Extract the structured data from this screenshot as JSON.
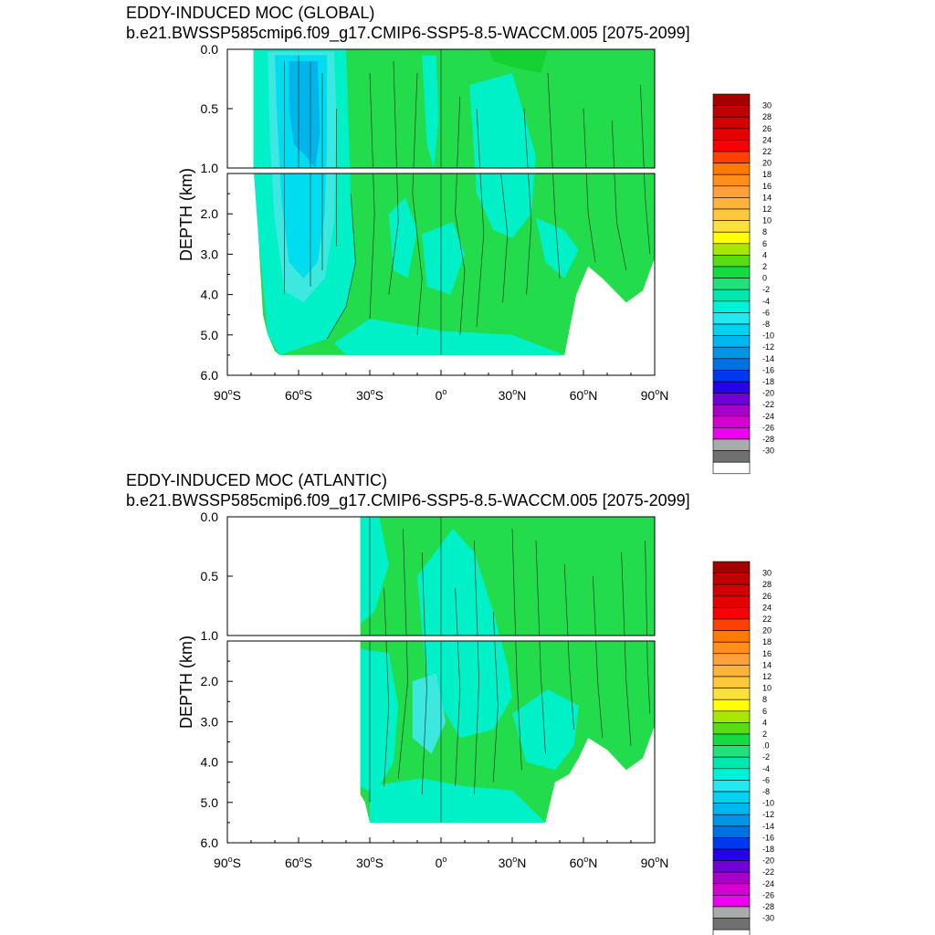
{
  "chart_data": [
    {
      "type": "heatmap",
      "title": "EDDY-INDUCED MOC (GLOBAL)",
      "subtitle": "b.e21.BWSSP585cmip6.f09_g17.CMIP6-SSP5-8.5-WACCM.005 [2075-2099]",
      "xlabel": "",
      "ylabel": "DEPTH (km)",
      "xlim": [
        -90,
        90
      ],
      "ylim": [
        6.0,
        0.0
      ],
      "x_ticks": [
        {
          "value": -90,
          "num": "90",
          "hemi": "S"
        },
        {
          "value": -60,
          "num": "60",
          "hemi": "S"
        },
        {
          "value": -30,
          "num": "30",
          "hemi": "S"
        },
        {
          "value": 0,
          "num": "0",
          "hemi": ""
        },
        {
          "value": 30,
          "num": "30",
          "hemi": "N"
        },
        {
          "value": 60,
          "num": "60",
          "hemi": "N"
        },
        {
          "value": 90,
          "num": "90",
          "hemi": "N"
        }
      ],
      "y_ticks_upper": [
        "0.0",
        "0.5",
        "1.0"
      ],
      "y_ticks_lower": [
        "2.0",
        "3.0",
        "4.0",
        "5.0",
        "6.0"
      ],
      "depth_break_km": 1.0,
      "dominant_range": [
        -12,
        2
      ],
      "colorbar_labels": [
        "30",
        "28",
        "26",
        "24",
        "22",
        "20",
        "18",
        "16",
        "14",
        "12",
        "10",
        "8",
        "6",
        "4",
        "2",
        "0",
        "-2",
        "-4",
        "-6",
        "-8",
        "-10",
        "-12",
        "-14",
        "-16",
        "-18",
        "-20",
        "-22",
        "-24",
        "-26",
        "-28",
        "-30"
      ],
      "fields": {
        "green_positive": 2,
        "teal_negative": -2,
        "southern_ocean_cell_min": -12,
        "southern_ocean_lat": -52
      }
    },
    {
      "type": "heatmap",
      "title": "EDDY-INDUCED MOC (ATLANTIC)",
      "subtitle": "b.e21.BWSSP585cmip6.f09_g17.CMIP6-SSP5-8.5-WACCM.005 [2075-2099]",
      "xlabel": "",
      "ylabel": "DEPTH (km)",
      "xlim": [
        -90,
        90
      ],
      "ylim": [
        6.0,
        0.0
      ],
      "x_ticks": [
        {
          "value": -90,
          "num": "90",
          "hemi": "S"
        },
        {
          "value": -60,
          "num": "60",
          "hemi": "S"
        },
        {
          "value": -30,
          "num": "30",
          "hemi": "S"
        },
        {
          "value": 0,
          "num": "0",
          "hemi": ""
        },
        {
          "value": 30,
          "num": "30",
          "hemi": "N"
        },
        {
          "value": 60,
          "num": "60",
          "hemi": "N"
        },
        {
          "value": 90,
          "num": "90",
          "hemi": "N"
        }
      ],
      "y_ticks_upper": [
        "0.0",
        "0.5",
        "1.0"
      ],
      "y_ticks_lower": [
        "2.0",
        "3.0",
        "4.0",
        "5.0",
        "6.0"
      ],
      "depth_break_km": 1.0,
      "dominant_range": [
        -2,
        2
      ],
      "colorbar_labels": [
        "30",
        "28",
        "26",
        "24",
        "22",
        "20",
        "18",
        "16",
        "14",
        "12",
        "10",
        "8",
        "6",
        "4",
        "2",
        ".0",
        "-2",
        "-4",
        "-6",
        "-8",
        "-10",
        "-12",
        "-14",
        "-16",
        "-18",
        "-20",
        "-22",
        "-24",
        "-26",
        "-28",
        "-30"
      ],
      "fields": {
        "green_positive": 2,
        "teal_negative": -2,
        "southern_boundary_lat": -34
      }
    }
  ],
  "colorbar_colors": [
    "#a50000",
    "#be0000",
    "#d20000",
    "#e60000",
    "#fa0000",
    "#ff4000",
    "#ff7a00",
    "#ff8f1a",
    "#ffa03a",
    "#ffb23e",
    "#ffc83c",
    "#ffe03a",
    "#ffff00",
    "#a8e800",
    "#58dc14",
    "#14dc40",
    "#22e07a",
    "#00e8b0",
    "#00f0d8",
    "#22e8f0",
    "#00d2f0",
    "#00b8ee",
    "#0096e6",
    "#0070e8",
    "#0038f0",
    "#2800e8",
    "#7000d8",
    "#a800c8",
    "#d800d0",
    "#f000f0",
    "#aaaaaa",
    "#707070",
    "#ffffff"
  ],
  "colors": {
    "green_pos": "#22dc4c",
    "teal_neg": "#00f0c8",
    "light_cyan": "#3ce8e0",
    "cyan_mid": "#00dcf0",
    "blue_deep": "#00b4ec",
    "contour": "#1a3a2a"
  }
}
